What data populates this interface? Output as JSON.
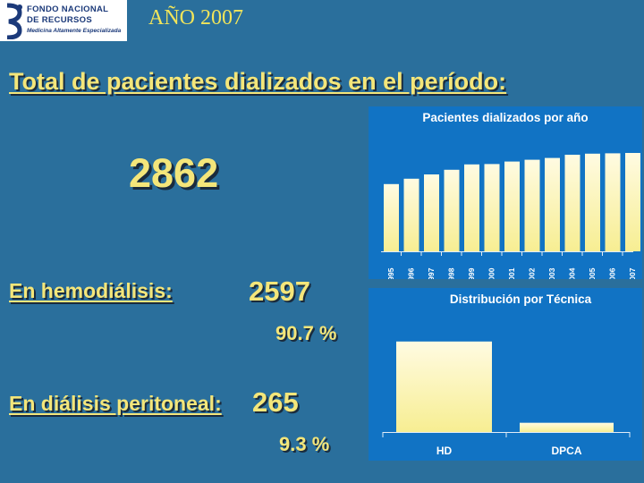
{
  "logo": {
    "line1": "FONDO NACIONAL",
    "line2": "DE RECURSOS",
    "line3": "Medicina Altamente Especializada"
  },
  "year_title": "AÑO 2007",
  "heading": "Total de pacientes dializados en el período:",
  "total": "2862",
  "hemo": {
    "label": "En hemodiálisis:",
    "value": "2597",
    "pct": "90.7 %"
  },
  "peri": {
    "label": "En diálisis peritoneal:",
    "value": "265",
    "pct": "9.3 %"
  },
  "chart_data": [
    {
      "type": "bar",
      "title": "Pacientes dializados por año",
      "categories": [
        "1995",
        "1996",
        "1997",
        "1998",
        "1999",
        "2000",
        "2001",
        "2002",
        "2003",
        "2004",
        "2005",
        "2006",
        "2007"
      ],
      "values": [
        1880,
        2030,
        2150,
        2280,
        2430,
        2440,
        2510,
        2560,
        2610,
        2700,
        2730,
        2740,
        2750
      ],
      "ylim": [
        0,
        3000
      ],
      "grid": false,
      "bar_color": "#fff7c0"
    },
    {
      "type": "bar",
      "title": "Distribución por Técnica",
      "categories": [
        "HD",
        "DPCA"
      ],
      "values": [
        2597,
        265
      ],
      "ylim": [
        0,
        2900
      ],
      "grid": false,
      "bar_color": "#fff7c0"
    }
  ]
}
